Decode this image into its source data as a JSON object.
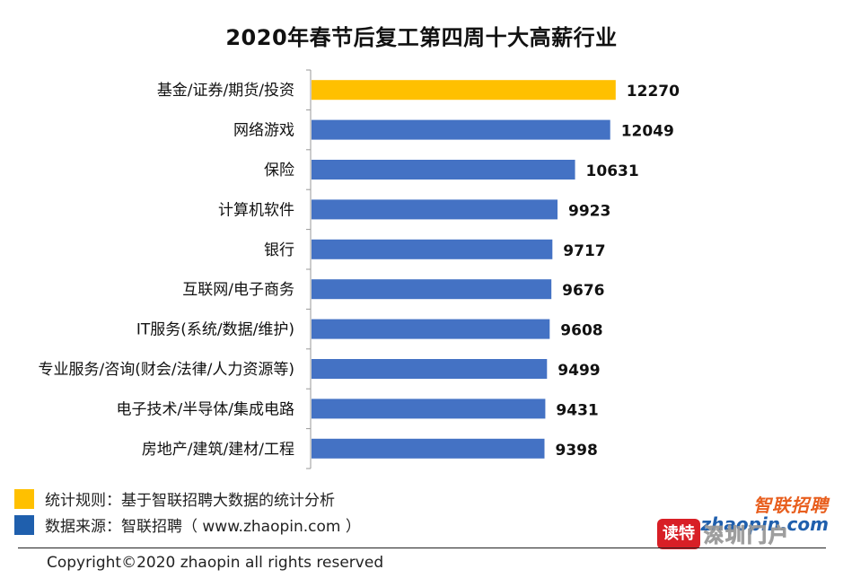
{
  "chart_data": {
    "type": "bar",
    "orientation": "horizontal",
    "title": "2020年春节后复工第四周十大高薪行业",
    "categories": [
      "基金/证券/期货/投资",
      "网络游戏",
      "保险",
      "计算机软件",
      "银行",
      "互联网/电子商务",
      "IT服务(系统/数据/维护)",
      "专业服务/咨询(财会/法律/人力资源等)",
      "电子技术/半导体/集成电路",
      "房地产/建筑/建材/工程"
    ],
    "values": [
      12270,
      12049,
      10631,
      9923,
      9717,
      9676,
      9608,
      9499,
      9431,
      9398
    ],
    "highlight_index": 0,
    "colors": {
      "highlight": "#ffc000",
      "bar": "#4472c4"
    },
    "xlim": [
      0,
      13400
    ],
    "grid": false,
    "xlabel": "",
    "ylabel": ""
  },
  "notes": [
    {
      "text": "统计规则：基于智联招聘大数据的统计分析",
      "color": "#ffc000"
    },
    {
      "text": "数据来源：智联招聘（ www.zhaopin.com ）",
      "color": "#1f5fad"
    }
  ],
  "copyright": "Copyright©2020 zhaopin all rights reserved",
  "logo": {
    "cn": "智联招聘",
    "en": "zhaopin.com"
  },
  "watermark": {
    "badge": "读特",
    "city": "深圳门户"
  }
}
